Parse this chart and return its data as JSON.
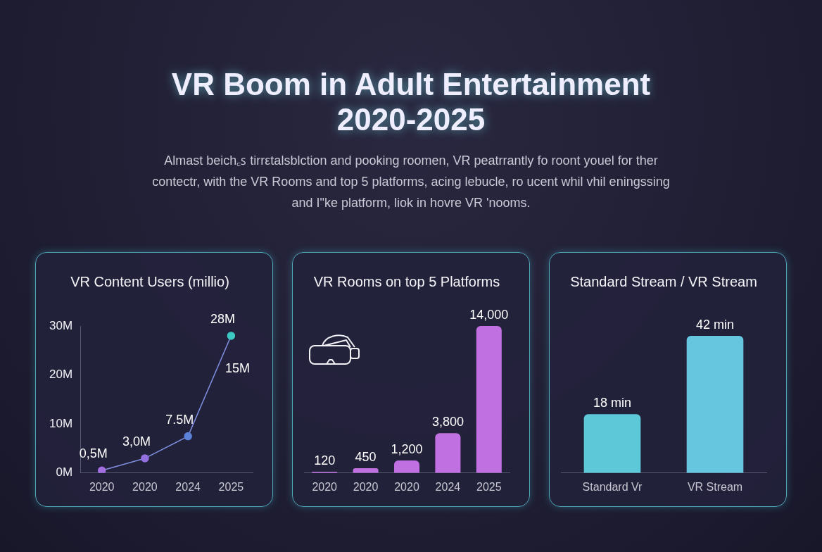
{
  "chart_data": [
    {
      "type": "other",
      "title": "VR Boom in Adult Entertainment\n2020-2025",
      "subtitle": "Almast beich꜀ꜱ tirrεtalsblction and pooking roomen, VR peatrrantly fo roont youel for ther\ncontectr, with the VR Rooms and top 5 platforms, acing lebucle, ro ucent whil vhil eningssing\nand I\"ke platform, liok in hovre VR 'nooms."
    },
    {
      "type": "line",
      "title": "VR Content Users (millio)",
      "categories": [
        "2020",
        "2020",
        "2024",
        "2025"
      ],
      "values": [
        0.5,
        3,
        7.5,
        28
      ],
      "value_labels": [
        "0,5M",
        "3,0M",
        "7.5M",
        "28M"
      ],
      "color": "#7f8fe0",
      "colors": [
        "#a36fe0",
        "#9370e0",
        "#5b82d8",
        "#3cc9c4"
      ],
      "marker": "circle",
      "ylim": [
        0,
        30
      ],
      "yticks": [
        {
          "value": 0,
          "label": "0M"
        },
        {
          "value": 10,
          "label": "10M"
        },
        {
          "value": 20,
          "label": "20M"
        },
        {
          "value": 30,
          "label": "30M"
        }
      ],
      "annotations": [
        "15M"
      ]
    },
    {
      "type": "bar",
      "title": "VR Rooms on top 5 Platforms",
      "categories": [
        "2020",
        "2020",
        "2020",
        "2024",
        "2025"
      ],
      "values": [
        120,
        450,
        1200,
        3800,
        14000
      ],
      "value_labels": [
        "120",
        "450",
        "1,200",
        "3,800",
        "14,000"
      ],
      "color": "#c070e0",
      "tick_labels": "x"
    },
    {
      "type": "bar",
      "title": "Standard Stream / VR Stream",
      "categories": [
        "Standard Vr",
        "VR Stream"
      ],
      "values": [
        18,
        42
      ],
      "value_labels": [
        "18 min",
        "42 min"
      ],
      "colors": [
        "#5cc8d8",
        "#66c6e0"
      ],
      "tick_labels": "x"
    }
  ]
}
